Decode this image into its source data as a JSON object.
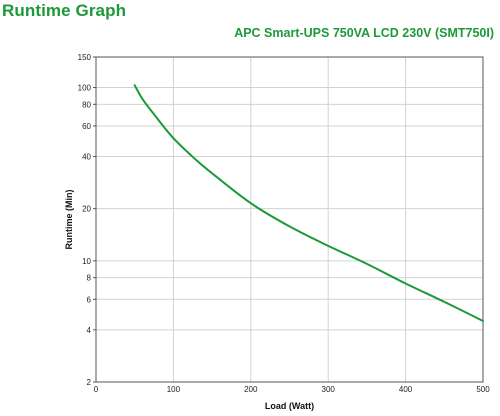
{
  "page": {
    "title": "Runtime Graph"
  },
  "colors": {
    "accent": "#1c9a3a",
    "series_line": "#1c9a3a",
    "grid": "#d2d2d2",
    "axis": "#555555"
  },
  "chart_data": {
    "type": "line",
    "title": "APC Smart-UPS 750VA LCD 230V (SMT750I)",
    "xlabel": "Load (Watt)",
    "ylabel": "Runtime (Min)",
    "xlim": [
      0,
      500
    ],
    "ylim": [
      2,
      150
    ],
    "yscale": "log",
    "grid": true,
    "x_ticks": [
      0,
      100,
      200,
      300,
      400,
      500
    ],
    "y_ticks": [
      2,
      4,
      6,
      8,
      10,
      20,
      40,
      60,
      80,
      100,
      150
    ],
    "series": [
      {
        "x": [
          50,
          60,
          75,
          100,
          130,
          150,
          200,
          250,
          300,
          350,
          400,
          450,
          500
        ],
        "y": [
          103,
          86,
          70,
          51,
          38,
          32,
          21.5,
          15.8,
          12.2,
          9.6,
          7.4,
          5.8,
          4.5
        ]
      }
    ]
  }
}
